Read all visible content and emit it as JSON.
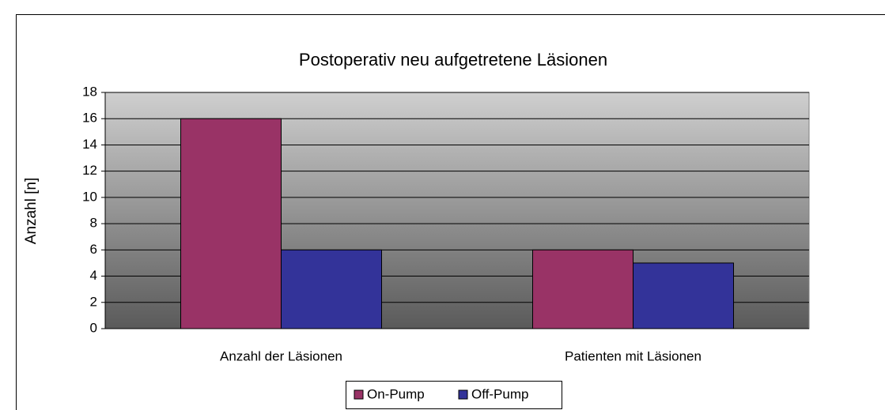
{
  "chart_data": {
    "type": "bar",
    "title": "Postoperativ neu aufgetretene Läsionen",
    "y_label": "Anzahl [n]",
    "categories": [
      "Anzahl der Läsionen",
      "Patienten mit Läsionen"
    ],
    "series": [
      {
        "name": "On-Pump",
        "color": "#993366",
        "values": [
          16,
          6
        ]
      },
      {
        "name": "Off-Pump",
        "color": "#333399",
        "values": [
          6,
          5
        ]
      }
    ],
    "ylim": [
      0,
      18
    ],
    "yticks": [
      0,
      2,
      4,
      6,
      8,
      10,
      12,
      14,
      16,
      18
    ],
    "grid": true,
    "legend": "bottom"
  }
}
